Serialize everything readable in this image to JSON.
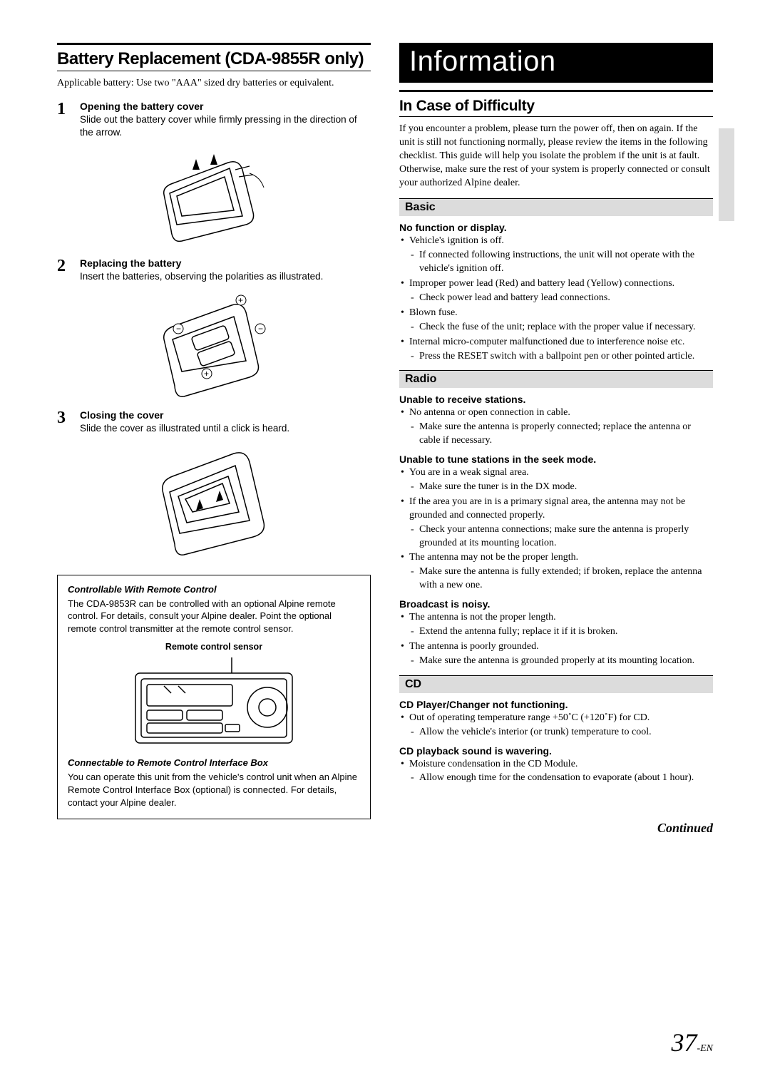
{
  "left": {
    "title": "Battery Replacement (CDA-9855R only)",
    "intro": "Applicable battery: Use two \"AAA\" sized dry batteries or equivalent.",
    "steps": [
      {
        "num": "1",
        "title": "Opening the battery cover",
        "text": "Slide out the battery cover while firmly pressing in the direction of the arrow."
      },
      {
        "num": "2",
        "title": "Replacing the battery",
        "text": "Insert the batteries, observing the polarities as illustrated."
      },
      {
        "num": "3",
        "title": "Closing the cover",
        "text": "Slide the cover as illustrated until a click is heard."
      }
    ],
    "box": {
      "t1": "Controllable  With Remote Control",
      "p1": "The CDA-9853R can be controlled with an optional Alpine remote control. For details, consult your Alpine dealer. Point the optional remote control transmitter at the remote control sensor.",
      "sensor_label": "Remote control sensor",
      "t2": "Connectable to Remote Control Interface Box",
      "p2": "You can operate this unit from the vehicle's control unit when an Alpine Remote Control Interface Box (optional) is connected. For details, contact your Alpine dealer."
    }
  },
  "right": {
    "banner": "Information",
    "subtitle": "In Case of Difficulty",
    "intro": "If you encounter a problem, please turn the power off, then on again. If the unit is still not functioning normally, please review the items in the following checklist. This guide will help you isolate the problem if the unit is at fault. Otherwise, make sure the rest of your system is properly connected or consult your authorized Alpine dealer.",
    "sections": [
      {
        "name": "Basic",
        "items": [
          {
            "symptom": "No function or display.",
            "causes": [
              {
                "c": "Vehicle's ignition is off.",
                "r": [
                  "If connected following instructions, the unit will not operate with the vehicle's ignition off."
                ]
              },
              {
                "c": "Improper power lead (Red) and battery lead (Yellow) connections.",
                "r": [
                  "Check power lead and battery lead connections."
                ]
              },
              {
                "c": "Blown fuse.",
                "r": [
                  "Check the fuse of the unit; replace with the proper value if necessary."
                ]
              },
              {
                "c": "Internal micro-computer malfunctioned due to interference noise etc.",
                "r": [
                  "Press the RESET switch with a ballpoint pen or other pointed article."
                ]
              }
            ]
          }
        ]
      },
      {
        "name": "Radio",
        "items": [
          {
            "symptom": "Unable to receive stations.",
            "causes": [
              {
                "c": "No antenna or open connection in cable.",
                "r": [
                  "Make sure the antenna is properly connected; replace the antenna or cable if necessary."
                ]
              }
            ]
          },
          {
            "symptom": "Unable to tune stations in the seek mode.",
            "causes": [
              {
                "c": "You are in a weak signal area.",
                "r": [
                  "Make sure the tuner is in the DX mode."
                ]
              },
              {
                "c": "If the area you are in is a primary signal area, the antenna may not be grounded and connected properly.",
                "r": [
                  "Check your antenna connections; make sure the antenna is properly grounded at its mounting location."
                ]
              },
              {
                "c": "The antenna may not be the proper length.",
                "r": [
                  "Make sure the antenna is fully extended; if broken, replace the antenna with a new one."
                ]
              }
            ]
          },
          {
            "symptom": "Broadcast is noisy.",
            "causes": [
              {
                "c": "The antenna is not the proper length.",
                "r": [
                  "Extend the antenna fully; replace it if it is broken."
                ]
              },
              {
                "c": "The antenna is poorly grounded.",
                "r": [
                  "Make sure the antenna is grounded properly at its mounting location."
                ]
              }
            ]
          }
        ]
      },
      {
        "name": "CD",
        "items": [
          {
            "symptom": "CD Player/Changer not functioning.",
            "causes": [
              {
                "c": "Out of operating temperature range +50˚C (+120˚F) for CD.",
                "r": [
                  "Allow the vehicle's interior (or trunk) temperature to cool."
                ]
              }
            ]
          },
          {
            "symptom": "CD playback sound is wavering.",
            "causes": [
              {
                "c": "Moisture condensation in the CD Module.",
                "r": [
                  "Allow enough time for the condensation to evaporate (about 1 hour)."
                ]
              }
            ]
          }
        ]
      }
    ],
    "continued": "Continued"
  },
  "page": {
    "num": "37",
    "suffix": "-EN"
  }
}
